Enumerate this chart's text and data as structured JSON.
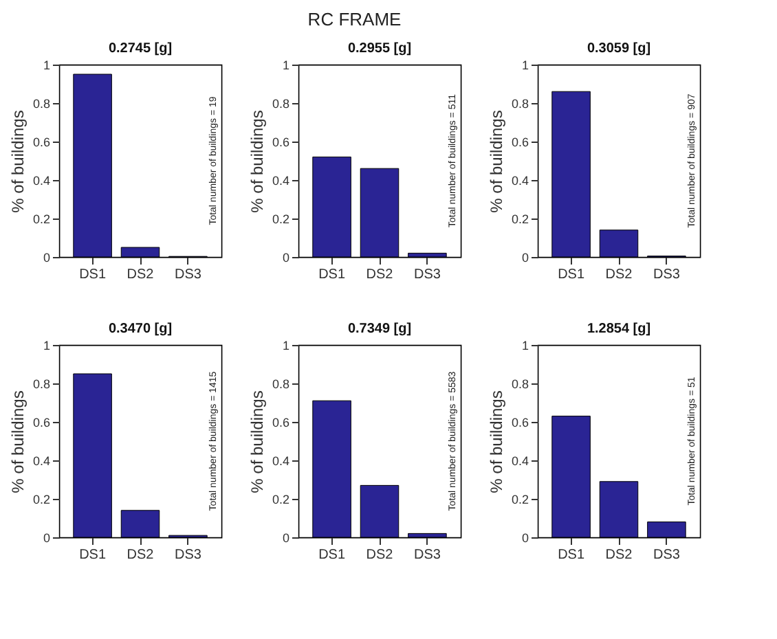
{
  "chart_data": [
    {
      "type": "bar",
      "title": "0.2745 [g]",
      "ylabel": "% of buildings",
      "categories": [
        "DS1",
        "DS2",
        "DS3"
      ],
      "values": [
        0.95,
        0.05,
        0.003
      ],
      "color": "#2a2494",
      "ylim": [
        0,
        1
      ],
      "yticks": [
        0,
        0.2,
        0.4,
        0.6,
        0.8,
        1
      ],
      "grid": false,
      "annotations": [
        "RC FRAME",
        "Total number of buildings = 19"
      ]
    },
    {
      "type": "bar",
      "title": "0.2955 [g]",
      "ylabel": "% of buildings",
      "categories": [
        "DS1",
        "DS2",
        "DS3"
      ],
      "values": [
        0.52,
        0.46,
        0.02
      ],
      "color": "#2a2494",
      "ylim": [
        0,
        1
      ],
      "yticks": [
        0,
        0.2,
        0.4,
        0.6,
        0.8,
        1
      ],
      "grid": false,
      "annotations": [
        "Total number of buildings = 511"
      ]
    },
    {
      "type": "bar",
      "title": "0.3059 [g]",
      "ylabel": "% of buildings",
      "categories": [
        "DS1",
        "DS2",
        "DS3"
      ],
      "values": [
        0.86,
        0.14,
        0.005
      ],
      "color": "#2a2494",
      "ylim": [
        0,
        1
      ],
      "yticks": [
        0,
        0.2,
        0.4,
        0.6,
        0.8,
        1
      ],
      "grid": false,
      "annotations": [
        "Total number of buildings = 907"
      ]
    },
    {
      "type": "bar",
      "title": "0.3470 [g]",
      "ylabel": "% of buildings",
      "categories": [
        "DS1",
        "DS2",
        "DS3"
      ],
      "values": [
        0.85,
        0.14,
        0.01
      ],
      "color": "#2a2494",
      "ylim": [
        0,
        1
      ],
      "yticks": [
        0,
        0.2,
        0.4,
        0.6,
        0.8,
        1
      ],
      "grid": false,
      "annotations": [
        "Total number of buildings = 1415"
      ]
    },
    {
      "type": "bar",
      "title": "0.7349 [g]",
      "ylabel": "% of buildings",
      "categories": [
        "DS1",
        "DS2",
        "DS3"
      ],
      "values": [
        0.71,
        0.27,
        0.02
      ],
      "color": "#2a2494",
      "ylim": [
        0,
        1
      ],
      "yticks": [
        0,
        0.2,
        0.4,
        0.6,
        0.8,
        1
      ],
      "grid": false,
      "annotations": [
        "Total number of buildings = 5583"
      ]
    },
    {
      "type": "bar",
      "title": "1.2854 [g]",
      "ylabel": "% of buildings",
      "categories": [
        "DS1",
        "DS2",
        "DS3"
      ],
      "values": [
        0.63,
        0.29,
        0.08
      ],
      "color": "#2a2494",
      "ylim": [
        0,
        1
      ],
      "yticks": [
        0,
        0.2,
        0.4,
        0.6,
        0.8,
        1
      ],
      "grid": false,
      "annotations": [
        "Total number of buildings = 51"
      ]
    }
  ]
}
